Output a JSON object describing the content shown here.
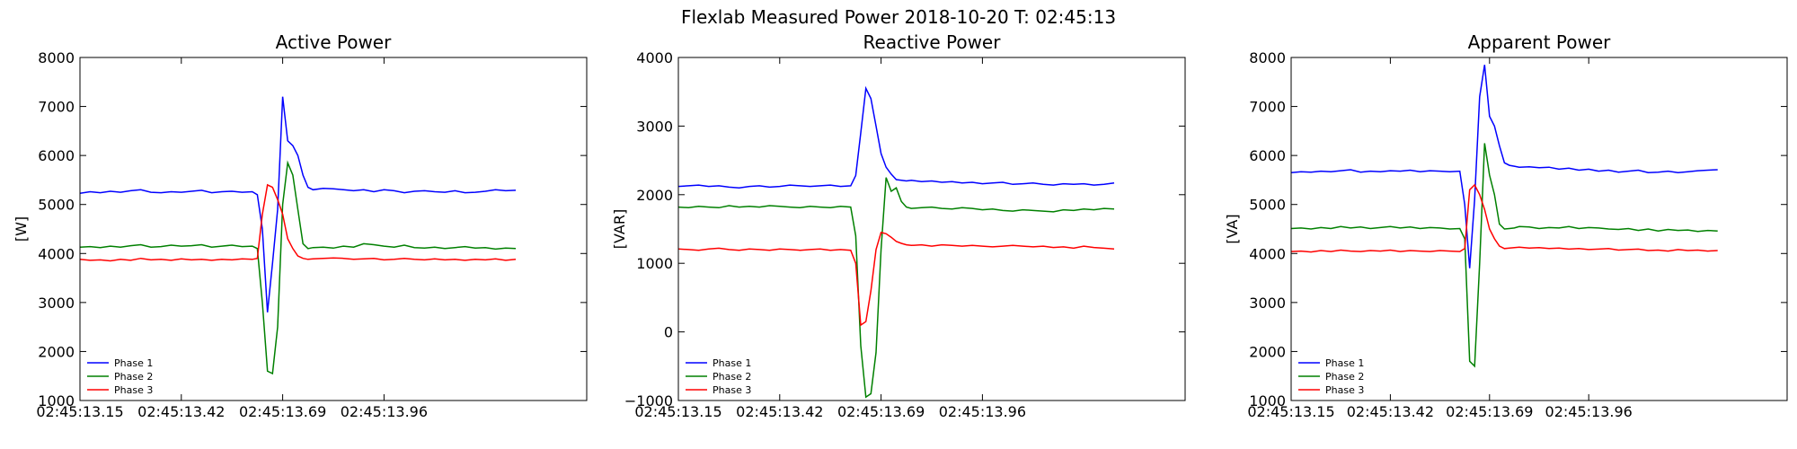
{
  "figure_title": "Flexlab Measured Power 2018-10-20 T: 02:45:13",
  "chart_data": [
    {
      "type": "line",
      "title": "Active Power",
      "xlabel": "",
      "ylabel": "[W]",
      "ylim": [
        1000,
        8000
      ],
      "yticks": [
        1000,
        2000,
        3000,
        4000,
        5000,
        6000,
        7000,
        8000
      ],
      "xlim": [
        0,
        100
      ],
      "xticks": [
        {
          "x": 0,
          "label": "02:45:13.15"
        },
        {
          "x": 20,
          "label": "02:45:13.42"
        },
        {
          "x": 40,
          "label": "02:45:13.69"
        },
        {
          "x": 60,
          "label": "02:45:13.96"
        }
      ],
      "legend": "lower-left",
      "series": [
        {
          "name": "Phase 1",
          "color": "#0000ff",
          "x": [
            0,
            2,
            4,
            6,
            8,
            10,
            12,
            14,
            16,
            18,
            20,
            22,
            24,
            26,
            28,
            30,
            32,
            34,
            35,
            36,
            37,
            38,
            39,
            40,
            41,
            42,
            43,
            44,
            45,
            46,
            48,
            50,
            52,
            54,
            56,
            58,
            60,
            62,
            64,
            66,
            68,
            70,
            72,
            74,
            76,
            78,
            80,
            82,
            84,
            86
          ],
          "y": [
            5230,
            5260,
            5240,
            5270,
            5250,
            5280,
            5300,
            5250,
            5240,
            5260,
            5250,
            5270,
            5290,
            5240,
            5260,
            5270,
            5250,
            5260,
            5200,
            4500,
            2800,
            3800,
            4900,
            7200,
            6300,
            6200,
            6000,
            5600,
            5350,
            5300,
            5330,
            5320,
            5300,
            5280,
            5300,
            5260,
            5300,
            5280,
            5240,
            5270,
            5280,
            5260,
            5250,
            5280,
            5240,
            5250,
            5270,
            5300,
            5280,
            5290
          ]
        },
        {
          "name": "Phase 2",
          "color": "#008000",
          "x": [
            0,
            2,
            4,
            6,
            8,
            10,
            12,
            14,
            16,
            18,
            20,
            22,
            24,
            26,
            28,
            30,
            32,
            34,
            35,
            36,
            37,
            38,
            39,
            40,
            41,
            42,
            43,
            44,
            45,
            46,
            48,
            50,
            52,
            54,
            56,
            58,
            60,
            62,
            64,
            66,
            68,
            70,
            72,
            74,
            76,
            78,
            80,
            82,
            84,
            86
          ],
          "y": [
            4130,
            4140,
            4120,
            4150,
            4130,
            4160,
            4180,
            4130,
            4140,
            4170,
            4150,
            4160,
            4180,
            4130,
            4150,
            4170,
            4140,
            4150,
            4100,
            3000,
            1600,
            1550,
            2500,
            5000,
            5850,
            5600,
            4900,
            4200,
            4100,
            4120,
            4130,
            4110,
            4150,
            4130,
            4200,
            4180,
            4150,
            4130,
            4170,
            4120,
            4110,
            4130,
            4100,
            4120,
            4140,
            4110,
            4120,
            4090,
            4110,
            4100
          ]
        },
        {
          "name": "Phase 3",
          "color": "#ff0000",
          "x": [
            0,
            2,
            4,
            6,
            8,
            10,
            12,
            14,
            16,
            18,
            20,
            22,
            24,
            26,
            28,
            30,
            32,
            34,
            35,
            36,
            37,
            38,
            39,
            40,
            41,
            42,
            43,
            44,
            45,
            46,
            48,
            50,
            52,
            54,
            56,
            58,
            60,
            62,
            64,
            66,
            68,
            70,
            72,
            74,
            76,
            78,
            80,
            82,
            84,
            86
          ],
          "y": [
            3880,
            3860,
            3870,
            3850,
            3880,
            3860,
            3900,
            3870,
            3880,
            3860,
            3890,
            3870,
            3880,
            3860,
            3880,
            3870,
            3890,
            3880,
            3900,
            4800,
            5400,
            5350,
            5100,
            4800,
            4300,
            4100,
            3950,
            3900,
            3880,
            3890,
            3900,
            3910,
            3900,
            3880,
            3890,
            3900,
            3870,
            3880,
            3900,
            3880,
            3870,
            3890,
            3870,
            3880,
            3860,
            3880,
            3870,
            3890,
            3860,
            3880
          ]
        }
      ]
    },
    {
      "type": "line",
      "title": "Reactive Power",
      "xlabel": "",
      "ylabel": "[VAR]",
      "ylim": [
        -1000,
        4000
      ],
      "yticks": [
        -1000,
        0,
        1000,
        2000,
        3000,
        4000
      ],
      "xlim": [
        0,
        100
      ],
      "xticks": [
        {
          "x": 0,
          "label": "02:45:13.15"
        },
        {
          "x": 20,
          "label": "02:45:13.42"
        },
        {
          "x": 40,
          "label": "02:45:13.69"
        },
        {
          "x": 60,
          "label": "02:45:13.96"
        }
      ],
      "legend": "lower-left",
      "series": [
        {
          "name": "Phase 1",
          "color": "#0000ff",
          "x": [
            0,
            2,
            4,
            6,
            8,
            10,
            12,
            14,
            16,
            18,
            20,
            22,
            24,
            26,
            28,
            30,
            32,
            34,
            35,
            36,
            37,
            38,
            39,
            40,
            41,
            42,
            43,
            44,
            45,
            46,
            48,
            50,
            52,
            54,
            56,
            58,
            60,
            62,
            64,
            66,
            68,
            70,
            72,
            74,
            76,
            78,
            80,
            82,
            84,
            86
          ],
          "y": [
            2120,
            2130,
            2140,
            2120,
            2130,
            2110,
            2100,
            2120,
            2130,
            2110,
            2120,
            2140,
            2130,
            2120,
            2130,
            2140,
            2120,
            2130,
            2280,
            2900,
            3550,
            3400,
            3000,
            2600,
            2400,
            2300,
            2220,
            2210,
            2200,
            2210,
            2190,
            2200,
            2180,
            2190,
            2170,
            2180,
            2160,
            2170,
            2180,
            2150,
            2160,
            2170,
            2150,
            2140,
            2160,
            2150,
            2160,
            2140,
            2150,
            2170
          ]
        },
        {
          "name": "Phase 2",
          "color": "#008000",
          "x": [
            0,
            2,
            4,
            6,
            8,
            10,
            12,
            14,
            16,
            18,
            20,
            22,
            24,
            26,
            28,
            30,
            32,
            34,
            35,
            36,
            37,
            38,
            39,
            40,
            41,
            42,
            43,
            44,
            45,
            46,
            48,
            50,
            52,
            54,
            56,
            58,
            60,
            62,
            64,
            66,
            68,
            70,
            72,
            74,
            76,
            78,
            80,
            82,
            84,
            86
          ],
          "y": [
            1820,
            1810,
            1830,
            1820,
            1810,
            1840,
            1820,
            1830,
            1820,
            1840,
            1830,
            1820,
            1810,
            1830,
            1820,
            1810,
            1830,
            1820,
            1400,
            -200,
            -950,
            -900,
            -300,
            1200,
            2250,
            2050,
            2100,
            1900,
            1820,
            1800,
            1810,
            1820,
            1800,
            1790,
            1810,
            1800,
            1780,
            1790,
            1770,
            1760,
            1780,
            1770,
            1760,
            1750,
            1780,
            1770,
            1790,
            1780,
            1800,
            1790
          ]
        },
        {
          "name": "Phase 3",
          "color": "#ff0000",
          "x": [
            0,
            2,
            4,
            6,
            8,
            10,
            12,
            14,
            16,
            18,
            20,
            22,
            24,
            26,
            28,
            30,
            32,
            34,
            35,
            36,
            37,
            38,
            39,
            40,
            41,
            42,
            43,
            44,
            45,
            46,
            48,
            50,
            52,
            54,
            56,
            58,
            60,
            62,
            64,
            66,
            68,
            70,
            72,
            74,
            76,
            78,
            80,
            82,
            84,
            86
          ],
          "y": [
            1210,
            1200,
            1190,
            1210,
            1220,
            1200,
            1190,
            1210,
            1200,
            1190,
            1210,
            1200,
            1190,
            1200,
            1210,
            1190,
            1200,
            1190,
            1000,
            100,
            150,
            600,
            1200,
            1450,
            1430,
            1380,
            1320,
            1290,
            1270,
            1260,
            1270,
            1250,
            1270,
            1260,
            1250,
            1260,
            1250,
            1240,
            1250,
            1260,
            1250,
            1240,
            1250,
            1230,
            1240,
            1220,
            1250,
            1230,
            1220,
            1210
          ]
        }
      ]
    },
    {
      "type": "line",
      "title": "Apparent Power",
      "xlabel": "",
      "ylabel": "[VA]",
      "ylim": [
        1000,
        8000
      ],
      "yticks": [
        1000,
        2000,
        3000,
        4000,
        5000,
        6000,
        7000,
        8000
      ],
      "xlim": [
        0,
        100
      ],
      "xticks": [
        {
          "x": 0,
          "label": "02:45:13.15"
        },
        {
          "x": 20,
          "label": "02:45:13.42"
        },
        {
          "x": 40,
          "label": "02:45:13.69"
        },
        {
          "x": 60,
          "label": "02:45:13.96"
        }
      ],
      "legend": "lower-left",
      "series": [
        {
          "name": "Phase 1",
          "color": "#0000ff",
          "x": [
            0,
            2,
            4,
            6,
            8,
            10,
            12,
            14,
            16,
            18,
            20,
            22,
            24,
            26,
            28,
            30,
            32,
            34,
            35,
            36,
            37,
            38,
            39,
            40,
            41,
            42,
            43,
            44,
            45,
            46,
            48,
            50,
            52,
            54,
            56,
            58,
            60,
            62,
            64,
            66,
            68,
            70,
            72,
            74,
            76,
            78,
            80,
            82,
            84,
            86
          ],
          "y": [
            5650,
            5670,
            5660,
            5680,
            5670,
            5690,
            5710,
            5660,
            5680,
            5670,
            5690,
            5680,
            5700,
            5670,
            5690,
            5680,
            5670,
            5680,
            5000,
            3700,
            5100,
            7200,
            7850,
            6800,
            6600,
            6200,
            5850,
            5800,
            5780,
            5760,
            5770,
            5750,
            5760,
            5720,
            5740,
            5700,
            5720,
            5680,
            5700,
            5660,
            5680,
            5700,
            5650,
            5660,
            5680,
            5650,
            5670,
            5690,
            5700,
            5710
          ]
        },
        {
          "name": "Phase 2",
          "color": "#008000",
          "x": [
            0,
            2,
            4,
            6,
            8,
            10,
            12,
            14,
            16,
            18,
            20,
            22,
            24,
            26,
            28,
            30,
            32,
            34,
            35,
            36,
            37,
            38,
            39,
            40,
            41,
            42,
            43,
            44,
            45,
            46,
            48,
            50,
            52,
            54,
            56,
            58,
            60,
            62,
            64,
            66,
            68,
            70,
            72,
            74,
            76,
            78,
            80,
            82,
            84,
            86
          ],
          "y": [
            4510,
            4520,
            4500,
            4530,
            4510,
            4550,
            4520,
            4540,
            4510,
            4530,
            4550,
            4520,
            4540,
            4510,
            4530,
            4520,
            4500,
            4510,
            4300,
            1800,
            1700,
            3800,
            6250,
            5600,
            5200,
            4600,
            4500,
            4510,
            4520,
            4550,
            4540,
            4510,
            4530,
            4520,
            4550,
            4510,
            4530,
            4520,
            4500,
            4490,
            4510,
            4470,
            4500,
            4460,
            4490,
            4470,
            4480,
            4450,
            4470,
            4460
          ]
        },
        {
          "name": "Phase 3",
          "color": "#ff0000",
          "x": [
            0,
            2,
            4,
            6,
            8,
            10,
            12,
            14,
            16,
            18,
            20,
            22,
            24,
            26,
            28,
            30,
            32,
            34,
            35,
            36,
            37,
            38,
            39,
            40,
            41,
            42,
            43,
            44,
            45,
            46,
            48,
            50,
            52,
            54,
            56,
            58,
            60,
            62,
            64,
            66,
            68,
            70,
            72,
            74,
            76,
            78,
            80,
            82,
            84,
            86
          ],
          "y": [
            4040,
            4050,
            4030,
            4060,
            4040,
            4070,
            4050,
            4040,
            4060,
            4050,
            4070,
            4040,
            4060,
            4050,
            4040,
            4060,
            4050,
            4040,
            4100,
            5300,
            5400,
            5200,
            4900,
            4500,
            4300,
            4150,
            4100,
            4110,
            4120,
            4130,
            4110,
            4120,
            4100,
            4110,
            4090,
            4100,
            4080,
            4090,
            4100,
            4070,
            4080,
            4090,
            4060,
            4070,
            4050,
            4080,
            4060,
            4070,
            4050,
            4060
          ]
        }
      ]
    }
  ]
}
